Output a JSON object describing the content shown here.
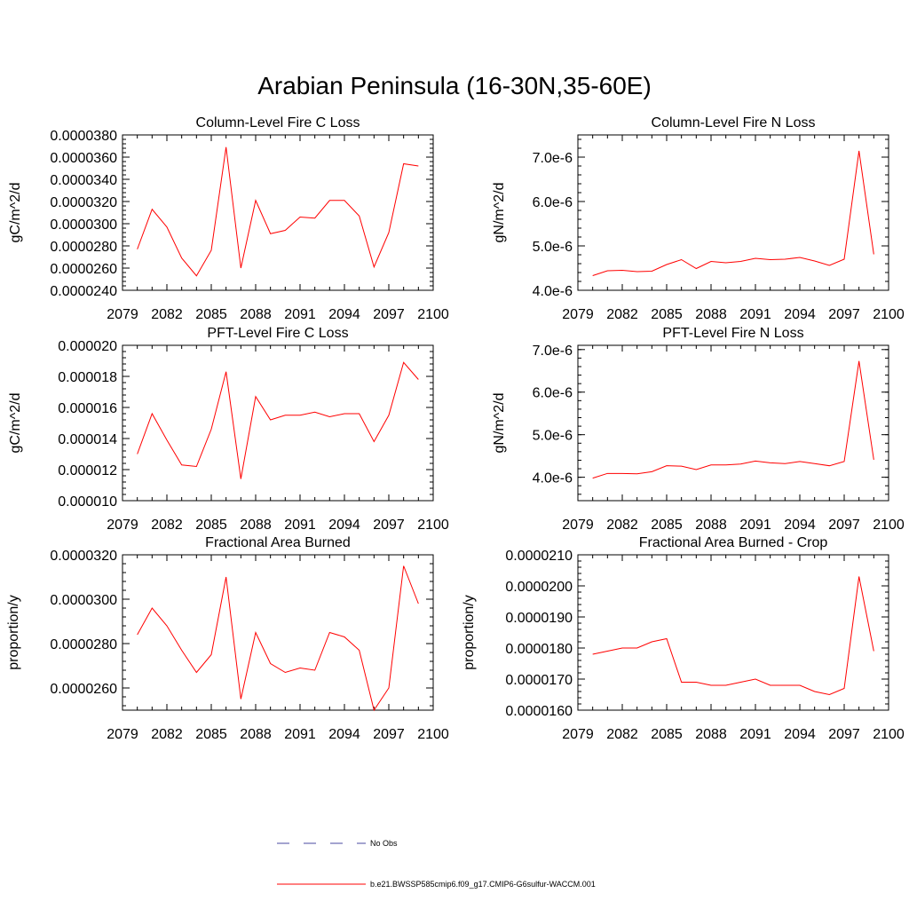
{
  "figure": {
    "title": "Arabian Peninsula (16-30N,35-60E)"
  },
  "colors": {
    "model_line": "#ff0000",
    "obs_line": "#4a4aa0",
    "axes": "#000000"
  },
  "legend": {
    "placement": "bottom-center",
    "items": [
      {
        "label": "No Obs",
        "style": "dashed",
        "color": "#4a4aa0"
      },
      {
        "label": "b.e21.BWSSP585cmip6.f09_g17.CMIP6-G6sulfur-WACCM.001",
        "style": "solid",
        "color": "#ff0000"
      }
    ]
  },
  "chart_data": [
    {
      "type": "line",
      "title": "Column-Level Fire C Loss",
      "ylabel": "gC/m^2/d",
      "xlim": [
        2079,
        2100
      ],
      "xticks": [
        "2079",
        "2082",
        "2085",
        "2088",
        "2091",
        "2094",
        "2097",
        "2100"
      ],
      "ylim": [
        2.4e-05,
        3.8e-05
      ],
      "yticks": [
        "0.0000240",
        "0.0000260",
        "0.0000280",
        "0.0000300",
        "0.0000320",
        "0.0000340",
        "0.0000360",
        "0.0000380"
      ],
      "x": [
        2080,
        2081,
        2082,
        2083,
        2084,
        2085,
        2086,
        2087,
        2088,
        2089,
        2090,
        2091,
        2092,
        2093,
        2094,
        2095,
        2096,
        2097,
        2098,
        2099
      ],
      "series": [
        {
          "values": [
            2.77e-05,
            3.13e-05,
            2.97e-05,
            2.69e-05,
            2.53e-05,
            2.76e-05,
            3.69e-05,
            2.6e-05,
            3.21e-05,
            2.91e-05,
            2.94e-05,
            3.06e-05,
            3.05e-05,
            3.21e-05,
            3.21e-05,
            3.07e-05,
            2.61e-05,
            2.92e-05,
            3.54e-05,
            3.52e-05
          ]
        }
      ]
    },
    {
      "type": "line",
      "title": "Column-Level Fire N Loss",
      "ylabel": "gN/m^2/d",
      "xlim": [
        2079,
        2100
      ],
      "xticks": [
        "2079",
        "2082",
        "2085",
        "2088",
        "2091",
        "2094",
        "2097",
        "2100"
      ],
      "ylim": [
        4e-06,
        7.5e-06
      ],
      "yticks": [
        "4.0e-6",
        "5.0e-6",
        "6.0e-6",
        "7.0e-6"
      ],
      "ytick_values": [
        4e-06,
        5e-06,
        6e-06,
        7e-06
      ],
      "x": [
        2080,
        2081,
        2082,
        2083,
        2084,
        2085,
        2086,
        2087,
        2088,
        2089,
        2090,
        2091,
        2092,
        2093,
        2094,
        2095,
        2096,
        2097,
        2098,
        2099
      ],
      "series": [
        {
          "values": [
            4.33e-06,
            4.44e-06,
            4.45e-06,
            4.42e-06,
            4.43e-06,
            4.58e-06,
            4.69e-06,
            4.49e-06,
            4.65e-06,
            4.62e-06,
            4.65e-06,
            4.72e-06,
            4.69e-06,
            4.7e-06,
            4.74e-06,
            4.66e-06,
            4.56e-06,
            4.7e-06,
            7.14e-06,
            4.81e-06
          ]
        }
      ]
    },
    {
      "type": "line",
      "title": "PFT-Level Fire C Loss",
      "ylabel": "gC/m^2/d",
      "xlim": [
        2079,
        2100
      ],
      "xticks": [
        "2079",
        "2082",
        "2085",
        "2088",
        "2091",
        "2094",
        "2097",
        "2100"
      ],
      "ylim": [
        1e-05,
        2e-05
      ],
      "yticks": [
        "0.000010",
        "0.000012",
        "0.000014",
        "0.000016",
        "0.000018",
        "0.000020"
      ],
      "x": [
        2080,
        2081,
        2082,
        2083,
        2084,
        2085,
        2086,
        2087,
        2088,
        2089,
        2090,
        2091,
        2092,
        2093,
        2094,
        2095,
        2096,
        2097,
        2098,
        2099
      ],
      "series": [
        {
          "values": [
            1.3e-05,
            1.56e-05,
            1.39e-05,
            1.23e-05,
            1.22e-05,
            1.46e-05,
            1.83e-05,
            1.14e-05,
            1.67e-05,
            1.52e-05,
            1.55e-05,
            1.55e-05,
            1.57e-05,
            1.54e-05,
            1.56e-05,
            1.56e-05,
            1.38e-05,
            1.55e-05,
            1.89e-05,
            1.78e-05
          ]
        }
      ]
    },
    {
      "type": "line",
      "title": "PFT-Level Fire N Loss",
      "ylabel": "gN/m^2/d",
      "xlim": [
        2079,
        2100
      ],
      "xticks": [
        "2079",
        "2082",
        "2085",
        "2088",
        "2091",
        "2094",
        "2097",
        "2100"
      ],
      "ylim": [
        3.45e-06,
        7.1e-06
      ],
      "yticks": [
        "4.0e-6",
        "5.0e-6",
        "6.0e-6",
        "7.0e-6"
      ],
      "ytick_values": [
        4e-06,
        5e-06,
        6e-06,
        7e-06
      ],
      "x": [
        2080,
        2081,
        2082,
        2083,
        2084,
        2085,
        2086,
        2087,
        2088,
        2089,
        2090,
        2091,
        2092,
        2093,
        2094,
        2095,
        2096,
        2097,
        2098,
        2099
      ],
      "series": [
        {
          "values": [
            3.98e-06,
            4.09e-06,
            4.09e-06,
            4.08e-06,
            4.13e-06,
            4.27e-06,
            4.26e-06,
            4.18e-06,
            4.29e-06,
            4.29e-06,
            4.31e-06,
            4.38e-06,
            4.34e-06,
            4.32e-06,
            4.37e-06,
            4.32e-06,
            4.27e-06,
            4.37e-06,
            6.73e-06,
            4.41e-06
          ]
        }
      ]
    },
    {
      "type": "line",
      "title": "Fractional Area Burned",
      "ylabel": "proportion/y",
      "xlim": [
        2079,
        2100
      ],
      "xticks": [
        "2079",
        "2082",
        "2085",
        "2088",
        "2091",
        "2094",
        "2097",
        "2100"
      ],
      "ylim": [
        2.5e-05,
        3.2e-05
      ],
      "yticks": [
        "0.0000260",
        "0.0000280",
        "0.0000300",
        "0.0000320"
      ],
      "ytick_values": [
        2.6e-05,
        2.8e-05,
        3e-05,
        3.2e-05
      ],
      "x": [
        2080,
        2081,
        2082,
        2083,
        2084,
        2085,
        2086,
        2087,
        2088,
        2089,
        2090,
        2091,
        2092,
        2093,
        2094,
        2095,
        2096,
        2097,
        2098,
        2099
      ],
      "series": [
        {
          "values": [
            2.84e-05,
            2.96e-05,
            2.88e-05,
            2.77e-05,
            2.67e-05,
            2.75e-05,
            3.1e-05,
            2.55e-05,
            2.85e-05,
            2.71e-05,
            2.67e-05,
            2.69e-05,
            2.68e-05,
            2.85e-05,
            2.83e-05,
            2.77e-05,
            2.5e-05,
            2.6e-05,
            3.15e-05,
            2.98e-05
          ]
        }
      ]
    },
    {
      "type": "line",
      "title": "Fractional Area Burned - Crop",
      "ylabel": "proportion/y",
      "xlim": [
        2079,
        2100
      ],
      "xticks": [
        "2079",
        "2082",
        "2085",
        "2088",
        "2091",
        "2094",
        "2097",
        "2100"
      ],
      "ylim": [
        1.6e-05,
        2.1e-05
      ],
      "yticks": [
        "0.0000160",
        "0.0000170",
        "0.0000180",
        "0.0000190",
        "0.0000200",
        "0.0000210"
      ],
      "ytick_values": [
        1.6e-05,
        1.7e-05,
        1.8e-05,
        1.9e-05,
        2e-05,
        2.1e-05
      ],
      "x": [
        2080,
        2081,
        2082,
        2083,
        2084,
        2085,
        2086,
        2087,
        2088,
        2089,
        2090,
        2091,
        2092,
        2093,
        2094,
        2095,
        2096,
        2097,
        2098,
        2099
      ],
      "series": [
        {
          "values": [
            1.78e-05,
            1.79e-05,
            1.8e-05,
            1.8e-05,
            1.82e-05,
            1.83e-05,
            1.69e-05,
            1.69e-05,
            1.68e-05,
            1.68e-05,
            1.69e-05,
            1.7e-05,
            1.68e-05,
            1.68e-05,
            1.68e-05,
            1.66e-05,
            1.65e-05,
            1.67e-05,
            2.03e-05,
            1.79e-05
          ]
        }
      ]
    }
  ]
}
